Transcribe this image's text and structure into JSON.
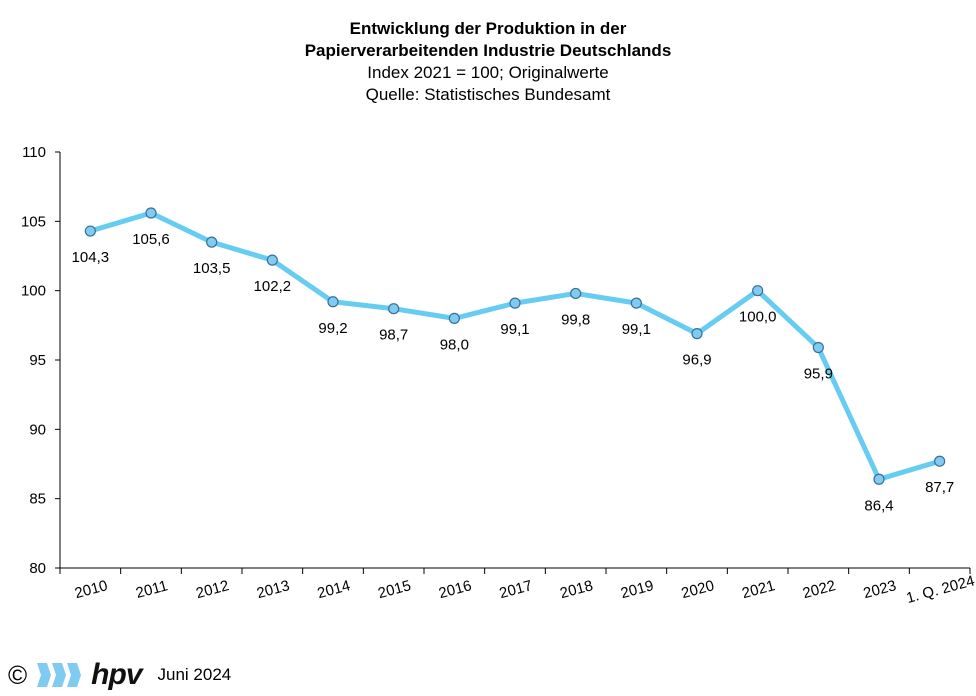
{
  "chart_data": {
    "type": "line",
    "title_line1": "Entwicklung der Produktion in der",
    "title_line2": "Papierverarbeitenden Industrie Deutschlands",
    "subtitle_line1": "Index 2021 = 100; Originalwerte",
    "subtitle_line2": "Quelle: Statistisches Bundesamt",
    "categories": [
      "2010",
      "2011",
      "2012",
      "2013",
      "2014",
      "2015",
      "2016",
      "2017",
      "2018",
      "2019",
      "2020",
      "2021",
      "2022",
      "2023",
      "1. Q. 2024"
    ],
    "values": [
      104.3,
      105.6,
      103.5,
      102.2,
      99.2,
      98.7,
      98.0,
      99.1,
      99.8,
      99.1,
      96.9,
      100.0,
      95.9,
      86.4,
      87.7
    ],
    "value_labels": [
      "104,3",
      "105,6",
      "103,5",
      "102,2",
      "99,2",
      "98,7",
      "98,0",
      "99,1",
      "99,8",
      "99,1",
      "96,9",
      "100,0",
      "95,9",
      "86,4",
      "87,7"
    ],
    "ylim": [
      80,
      110
    ],
    "yticks": [
      80,
      85,
      90,
      95,
      100,
      105,
      110
    ],
    "xlabel": "",
    "ylabel": "",
    "grid": false,
    "line_color": "#66CCF2",
    "marker_color": "#7FCCF0",
    "marker_edge": "#3A6E9A"
  },
  "footer": {
    "copyright": "©",
    "brand": "hpv",
    "date": "Juni 2024",
    "brand_color": "#7FCCF0"
  }
}
